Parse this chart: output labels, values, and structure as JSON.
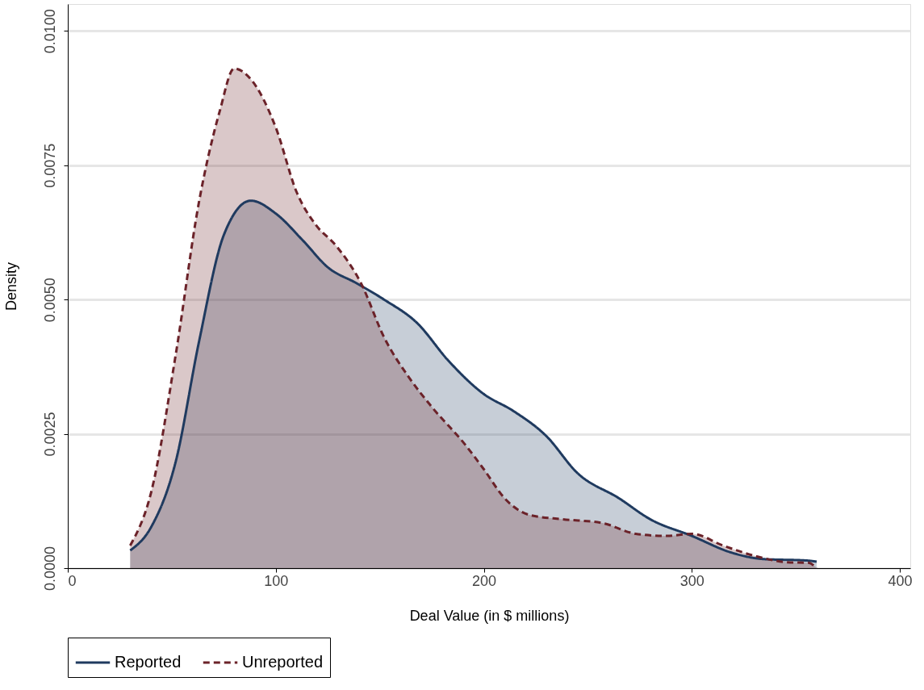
{
  "chart_data": {
    "type": "area",
    "xlabel": "Deal Value (in $ millions)",
    "ylabel": "Density",
    "xlim": [
      0,
      405
    ],
    "xticks": [
      0,
      100,
      200,
      300,
      400
    ],
    "ylim": [
      0,
      0.0105
    ],
    "yticks": [
      {
        "value": 0.0,
        "label": "0.0000"
      },
      {
        "value": 0.0025,
        "label": "0.0025"
      },
      {
        "value": 0.005,
        "label": "0.0050"
      },
      {
        "value": 0.0075,
        "label": "0.0075"
      },
      {
        "value": 0.01,
        "label": "0.0100"
      }
    ],
    "grid": "y",
    "legend": "bottom",
    "series": [
      {
        "name": "Reported",
        "color": "#1f3a5f",
        "line_style": "solid",
        "x": [
          30,
          40,
          52,
          63,
          75,
          88,
          100,
          113,
          125,
          139,
          152,
          168,
          183,
          200,
          214,
          230,
          245,
          265,
          280,
          300,
          319,
          334,
          356,
          360
        ],
        "values": [
          0.00033,
          0.00076,
          0.002,
          0.0042,
          0.0062,
          0.00684,
          0.0066,
          0.0061,
          0.0056,
          0.0053,
          0.005,
          0.00456,
          0.00386,
          0.00324,
          0.00293,
          0.00246,
          0.00177,
          0.0013,
          0.00091,
          0.0006,
          0.00029,
          0.00017,
          0.00014,
          0.00012
        ]
      },
      {
        "name": "Unreported",
        "color": "#6b2229",
        "line_style": "dashed",
        "x": [
          30,
          40,
          52,
          63,
          73,
          80,
          88,
          100,
          110,
          119,
          129,
          141,
          152,
          164,
          175,
          191,
          200,
          210,
          222,
          238,
          257,
          273,
          288,
          300,
          315,
          331,
          346,
          356,
          360
        ],
        "values": [
          0.00042,
          0.0014,
          0.004,
          0.0068,
          0.0085,
          0.0093,
          0.0091,
          0.0082,
          0.007,
          0.0064,
          0.006,
          0.0053,
          0.0043,
          0.00355,
          0.003,
          0.0023,
          0.00184,
          0.0013,
          0.00099,
          0.00091,
          0.00084,
          0.00064,
          0.0006,
          0.00064,
          0.00042,
          0.00022,
          0.00011,
          0.0001,
          0.0
        ]
      }
    ]
  }
}
